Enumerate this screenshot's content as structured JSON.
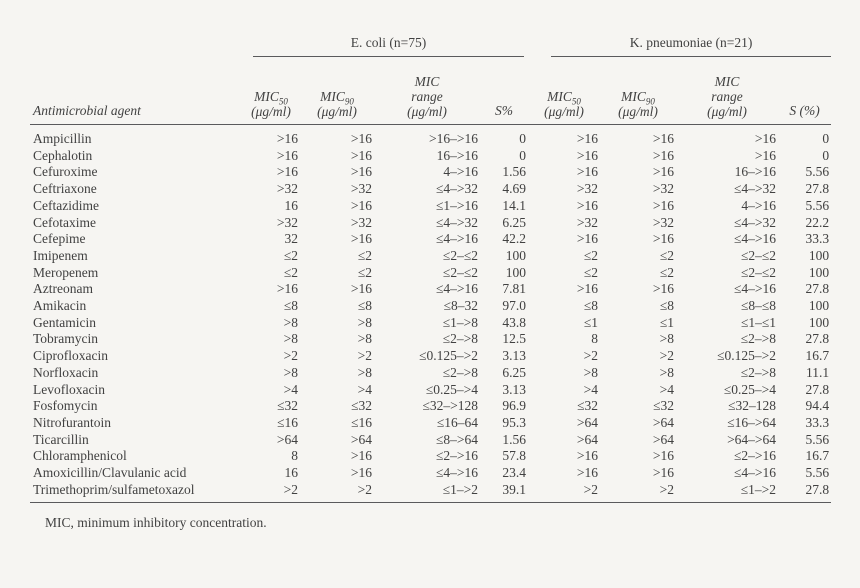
{
  "page": {
    "background_color": "#f6f5f2",
    "text_color": "#414141",
    "rule_color": "#5a5a5c"
  },
  "table": {
    "row_header": "Antimicrobial agent",
    "groups": [
      {
        "label": "E. coli (n=75)"
      },
      {
        "label": "K. pneumoniae (n=21)"
      }
    ],
    "columns": {
      "ecoli": [
        {
          "main": "MIC",
          "sub": "50",
          "unit": "(μg/ml)"
        },
        {
          "main": "MIC",
          "sub": "90",
          "unit": "(μg/ml)"
        },
        {
          "main": "MIC",
          "line2": "range",
          "unit": "(μg/ml)"
        },
        {
          "main": "S%"
        }
      ],
      "kpneumoniae": [
        {
          "main": "MIC",
          "sub": "50",
          "unit": "(μg/ml)"
        },
        {
          "main": "MIC",
          "sub": "90",
          "unit": "(μg/ml)"
        },
        {
          "main": "MIC",
          "line2": "range",
          "unit": "(μg/ml)"
        },
        {
          "main": "S (%)"
        }
      ]
    },
    "rows": [
      [
        "Ampicillin",
        ">16",
        ">16",
        ">16–>16",
        "0",
        ">16",
        ">16",
        ">16",
        "0"
      ],
      [
        "Cephalotin",
        ">16",
        ">16",
        "16–>16",
        "0",
        ">16",
        ">16",
        ">16",
        "0"
      ],
      [
        "Cefuroxime",
        ">16",
        ">16",
        "4–>16",
        "1.56",
        ">16",
        ">16",
        "16–>16",
        "5.56"
      ],
      [
        "Ceftriaxone",
        ">32",
        ">32",
        "≤4–>32",
        "4.69",
        ">32",
        ">32",
        "≤4–>32",
        "27.8"
      ],
      [
        "Ceftazidime",
        "16",
        ">16",
        "≤1–>16",
        "14.1",
        ">16",
        ">16",
        "4–>16",
        "5.56"
      ],
      [
        "Cefotaxime",
        ">32",
        ">32",
        "≤4–>32",
        "6.25",
        ">32",
        ">32",
        "≤4–>32",
        "22.2"
      ],
      [
        "Cefepime",
        "32",
        ">16",
        "≤4–>16",
        "42.2",
        ">16",
        ">16",
        "≤4–>16",
        "33.3"
      ],
      [
        "Imipenem",
        "≤2",
        "≤2",
        "≤2–≤2",
        "100",
        "≤2",
        "≤2",
        "≤2–≤2",
        "100"
      ],
      [
        "Meropenem",
        "≤2",
        "≤2",
        "≤2–≤2",
        "100",
        "≤2",
        "≤2",
        "≤2–≤2",
        "100"
      ],
      [
        "Aztreonam",
        ">16",
        ">16",
        "≤4–>16",
        "7.81",
        ">16",
        ">16",
        "≤4–>16",
        "27.8"
      ],
      [
        "Amikacin",
        "≤8",
        "≤8",
        "≤8–32",
        "97.0",
        "≤8",
        "≤8",
        "≤8–≤8",
        "100"
      ],
      [
        "Gentamicin",
        ">8",
        ">8",
        "≤1–>8",
        "43.8",
        "≤1",
        "≤1",
        "≤1–≤1",
        "100"
      ],
      [
        "Tobramycin",
        ">8",
        ">8",
        "≤2–>8",
        "12.5",
        "8",
        ">8",
        "≤2–>8",
        "27.8"
      ],
      [
        "Ciprofloxacin",
        ">2",
        ">2",
        "≤0.125–>2",
        "3.13",
        ">2",
        ">2",
        "≤0.125–>2",
        "16.7"
      ],
      [
        "Norfloxacin",
        ">8",
        ">8",
        "≤2–>8",
        "6.25",
        ">8",
        ">8",
        "≤2–>8",
        "11.1"
      ],
      [
        "Levofloxacin",
        ">4",
        ">4",
        "≤0.25–>4",
        "3.13",
        ">4",
        ">4",
        "≤0.25–>4",
        "27.8"
      ],
      [
        "Fosfomycin",
        "≤32",
        "≤32",
        "≤32–>128",
        "96.9",
        "≤32",
        "≤32",
        "≤32–128",
        "94.4"
      ],
      [
        "Nitrofurantoin",
        "≤16",
        "≤16",
        "≤16–64",
        "95.3",
        ">64",
        ">64",
        "≤16–>64",
        "33.3"
      ],
      [
        "Ticarcillin",
        ">64",
        ">64",
        "≤8–>64",
        "1.56",
        ">64",
        ">64",
        ">64–>64",
        "5.56"
      ],
      [
        "Chloramphenicol",
        "8",
        ">16",
        "≤2–>16",
        "57.8",
        ">16",
        ">16",
        "≤2–>16",
        "16.7"
      ],
      [
        "Amoxicillin/Clavulanic acid",
        "16",
        ">16",
        "≤4–>16",
        "23.4",
        ">16",
        ">16",
        "≤4–>16",
        "5.56"
      ],
      [
        "Trimethoprim/sulfametoxazol",
        ">2",
        ">2",
        "≤1–>2",
        "39.1",
        ">2",
        ">2",
        "≤1–>2",
        "27.8"
      ]
    ],
    "footnote": "MIC, minimum inhibitory concentration."
  }
}
